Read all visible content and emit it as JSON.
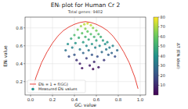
{
  "chart_data": {
    "type": "scatter",
    "title": "ENₗ plot for Human Cr 2",
    "subtitle": "Total genes: 9402",
    "x_label": "GCₗ value",
    "y_label": "ENₗ value",
    "xlim": [
      -0.05,
      1.05
    ],
    "ylim": [
      0.05,
      0.92
    ],
    "xticks": [
      {
        "value": 0,
        "label": "0.0"
      },
      0.2,
      0.4,
      0.6,
      0.8,
      {
        "value": 1,
        "label": "1.0"
      }
    ],
    "yticks": [
      0.2,
      0.4,
      0.6,
      0.8
    ],
    "grid": true,
    "legend": "lower left",
    "colorbar": {
      "label": "ΔT (ENₗ ideal)",
      "range": [
        0,
        80
      ],
      "ticks": [
        10,
        20,
        30,
        40,
        50,
        60,
        70,
        80
      ]
    },
    "series": [
      {
        "name": "ENₗ = 1 + f(GCₗ)",
        "type": "line",
        "color": "#e8453c",
        "x": [
          0.02,
          0.05,
          0.1,
          0.15,
          0.2,
          0.25,
          0.3,
          0.35,
          0.4,
          0.45,
          0.5,
          0.55,
          0.6,
          0.65,
          0.7,
          0.75,
          0.8,
          0.85,
          0.9,
          0.95,
          0.98
        ],
        "values": [
          0.12,
          0.25,
          0.41,
          0.53,
          0.63,
          0.71,
          0.77,
          0.81,
          0.84,
          0.86,
          0.87,
          0.86,
          0.84,
          0.81,
          0.77,
          0.71,
          0.63,
          0.53,
          0.41,
          0.25,
          0.12
        ]
      },
      {
        "name": "Measured ENₗ values",
        "type": "scatter",
        "marker": "o",
        "x": [
          0.32,
          0.34,
          0.35,
          0.37,
          0.38,
          0.4,
          0.4,
          0.41,
          0.42,
          0.43,
          0.44,
          0.45,
          0.45,
          0.46,
          0.47,
          0.48,
          0.48,
          0.49,
          0.5,
          0.5,
          0.51,
          0.51,
          0.52,
          0.52,
          0.53,
          0.53,
          0.54,
          0.55,
          0.55,
          0.56,
          0.56,
          0.57,
          0.58,
          0.58,
          0.59,
          0.6,
          0.6,
          0.61,
          0.62,
          0.62,
          0.63,
          0.64,
          0.65,
          0.66,
          0.67,
          0.68,
          0.69,
          0.7,
          0.71,
          0.72,
          0.74,
          0.75,
          0.77,
          0.79,
          0.47,
          0.57
        ],
        "values": [
          0.55,
          0.62,
          0.48,
          0.68,
          0.58,
          0.72,
          0.5,
          0.63,
          0.44,
          0.78,
          0.69,
          0.56,
          0.4,
          0.82,
          0.74,
          0.64,
          0.52,
          0.84,
          0.79,
          0.7,
          0.6,
          0.46,
          0.85,
          0.76,
          0.67,
          0.55,
          0.38,
          0.83,
          0.73,
          0.62,
          0.5,
          0.8,
          0.7,
          0.42,
          0.58,
          0.77,
          0.66,
          0.48,
          0.73,
          0.36,
          0.6,
          0.7,
          0.53,
          0.66,
          0.44,
          0.62,
          0.56,
          0.64,
          0.5,
          0.58,
          0.52,
          0.6,
          0.48,
          0.55,
          0.35,
          0.34
        ],
        "color_values": [
          30,
          40,
          20,
          48,
          35,
          55,
          22,
          42,
          12,
          62,
          50,
          32,
          8,
          68,
          58,
          44,
          26,
          72,
          65,
          52,
          38,
          16,
          75,
          60,
          48,
          30,
          6,
          72,
          56,
          42,
          22,
          66,
          52,
          10,
          36,
          62,
          46,
          20,
          56,
          5,
          38,
          50,
          28,
          44,
          14,
          40,
          32,
          42,
          24,
          34,
          26,
          36,
          20,
          28,
          4,
          3
        ]
      }
    ]
  }
}
